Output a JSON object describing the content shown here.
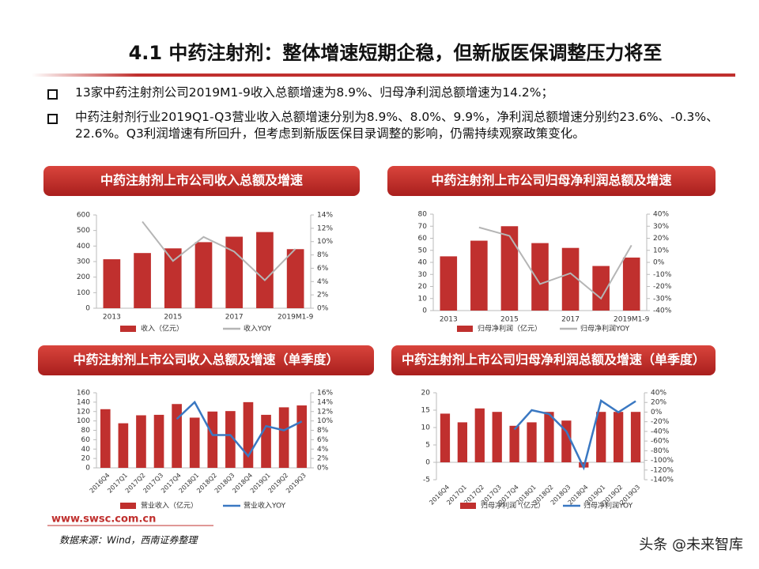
{
  "header": {
    "title": "4.1 中药注射剂：整体增速短期企稳，但新版医保调整压力将至"
  },
  "bullets": [
    "13家中药注射剂公司2019M1-9收入总额增速为8.9%、归母净利润总额增速为14.2%；",
    "中药注射剂行业2019Q1-Q3营业收入总额增速分别为8.9%、8.0%、9.9%，净利润总额增速分别约23.6%、-0.3%、22.6%。Q3利润增速有所回升，但考虑到新版医保目录调整的影响，仍需持续观察政策变化。"
  ],
  "chart_data": [
    {
      "type": "bar",
      "title": "中药注射剂上市公司收入总额及增速",
      "categories": [
        "2013",
        null,
        "2015",
        null,
        "2017",
        null,
        "2019M1-9"
      ],
      "series": [
        {
          "name": "收入（亿元）",
          "color": "#c0302e",
          "type": "bar",
          "values": [
            315,
            355,
            385,
            425,
            460,
            490,
            380
          ]
        },
        {
          "name": "收入YOY",
          "color": "#b5b5b5",
          "type": "line",
          "axis": "y2",
          "values": [
            null,
            13,
            7.1,
            10.7,
            8.5,
            4.2,
            8.9
          ]
        }
      ],
      "ylim": [
        0,
        600
      ],
      "yticks": [
        0,
        100,
        200,
        300,
        400,
        500,
        600
      ],
      "y2lim": [
        0,
        14
      ],
      "y2ticks": [
        {
          "value": 0,
          "label": "0%"
        },
        {
          "value": 2,
          "label": "2%"
        },
        {
          "value": 4,
          "label": "4%"
        },
        {
          "value": 6,
          "label": "6%"
        },
        {
          "value": 8,
          "label": "8%"
        },
        {
          "value": 10,
          "label": "10%"
        },
        {
          "value": 12,
          "label": "12%"
        },
        {
          "value": 14,
          "label": "14%"
        }
      ]
    },
    {
      "type": "bar",
      "title": "中药注射剂上市公司归母净利润总额及增速",
      "categories": [
        "2013",
        null,
        "2015",
        null,
        "2017",
        null,
        "2019M1-9"
      ],
      "series": [
        {
          "name": "归母净利润（亿元）",
          "color": "#c0302e",
          "type": "bar",
          "values": [
            45,
            58,
            70,
            56,
            52,
            37,
            44
          ]
        },
        {
          "name": "归母净利润YOY",
          "color": "#b5b5b5",
          "type": "line",
          "axis": "y2",
          "values": [
            null,
            29,
            22,
            -18,
            -9,
            -30,
            14.2
          ]
        }
      ],
      "ylim": [
        0,
        80
      ],
      "yticks": [
        0,
        10,
        20,
        30,
        40,
        50,
        60,
        70,
        80
      ],
      "y2lim": [
        -40,
        40
      ],
      "y2ticks": [
        {
          "value": -40,
          "label": "-40%"
        },
        {
          "value": -30,
          "label": "-30%"
        },
        {
          "value": -20,
          "label": "-20%"
        },
        {
          "value": -10,
          "label": "-10%"
        },
        {
          "value": 0,
          "label": "0%"
        },
        {
          "value": 10,
          "label": "10%"
        },
        {
          "value": 20,
          "label": "20%"
        },
        {
          "value": 30,
          "label": "30%"
        },
        {
          "value": 40,
          "label": "40%"
        }
      ]
    },
    {
      "type": "bar",
      "title": "中药注射剂上市公司收入总额及增速（单季度）",
      "categories": [
        "2016Q4",
        "2017Q1",
        "2017Q2",
        "2017Q3",
        "2017Q4",
        "2018Q1",
        "2018Q2",
        "2018Q3",
        "2018Q4",
        "2019Q1",
        "2019Q2",
        "2019Q3"
      ],
      "series": [
        {
          "name": "营业收入（亿元）",
          "color": "#c0302e",
          "type": "bar",
          "values": [
            125,
            95,
            112,
            113,
            136,
            107,
            120,
            121,
            140,
            113,
            129,
            133
          ]
        },
        {
          "name": "营业收入YOY",
          "color": "#3a78c2",
          "type": "line",
          "axis": "y2",
          "values": [
            null,
            null,
            null,
            null,
            10.4,
            14,
            7,
            7,
            2.5,
            8.9,
            8.0,
            9.9
          ]
        }
      ],
      "ylim": [
        0,
        160
      ],
      "yticks": [
        0,
        20,
        40,
        60,
        80,
        100,
        120,
        140,
        160
      ],
      "y2lim": [
        0,
        16
      ],
      "y2ticks": [
        {
          "value": 0,
          "label": "0%"
        },
        {
          "value": 2,
          "label": "2%"
        },
        {
          "value": 4,
          "label": "4%"
        },
        {
          "value": 6,
          "label": "6%"
        },
        {
          "value": 8,
          "label": "8%"
        },
        {
          "value": 10,
          "label": "10%"
        },
        {
          "value": 12,
          "label": "12%"
        },
        {
          "value": 14,
          "label": "14%"
        },
        {
          "value": 16,
          "label": "16%"
        }
      ]
    },
    {
      "type": "bar",
      "title": "中药注射剂上市公司归母净利润总额及增速（单季度）",
      "categories": [
        "2016Q4",
        "2017Q1",
        "2017Q2",
        "2017Q3",
        "2017Q4",
        "2018Q1",
        "2018Q2",
        "2018Q3",
        "2018Q4",
        "2019Q1",
        "2019Q2",
        "2019Q3"
      ],
      "series": [
        {
          "name": "归母净利润（亿元）",
          "color": "#c0302e",
          "type": "bar",
          "values": [
            14,
            11.5,
            15.5,
            14.5,
            10.5,
            11.5,
            14.5,
            12,
            -1.5,
            14.5,
            14.5,
            14.5
          ]
        },
        {
          "name": "归母净利润YOY",
          "color": "#3a78c2",
          "type": "line",
          "axis": "y2",
          "values": [
            null,
            null,
            null,
            null,
            -36,
            4,
            -4,
            -40,
            -115,
            23.6,
            -0.3,
            22.6
          ]
        }
      ],
      "ylim": [
        -5,
        20
      ],
      "yticks": [
        -5,
        0,
        5,
        10,
        15,
        20
      ],
      "y2lim": [
        -140,
        40
      ],
      "y2ticks": [
        {
          "value": -140,
          "label": "-140%"
        },
        {
          "value": -120,
          "label": "-120%"
        },
        {
          "value": -100,
          "label": "-100%"
        },
        {
          "value": -80,
          "label": "-80%"
        },
        {
          "value": -60,
          "label": "-60%"
        },
        {
          "value": -40,
          "label": "-40%"
        },
        {
          "value": -20,
          "label": "-20%"
        },
        {
          "value": 0,
          "label": "0%"
        },
        {
          "value": 20,
          "label": "20%"
        },
        {
          "value": 40,
          "label": "40%"
        }
      ]
    }
  ],
  "footer": {
    "url": "www.swsc.com.cn",
    "source": "数据来源：Wind，西南证券整理",
    "watermark": "头条 @未来智库"
  }
}
